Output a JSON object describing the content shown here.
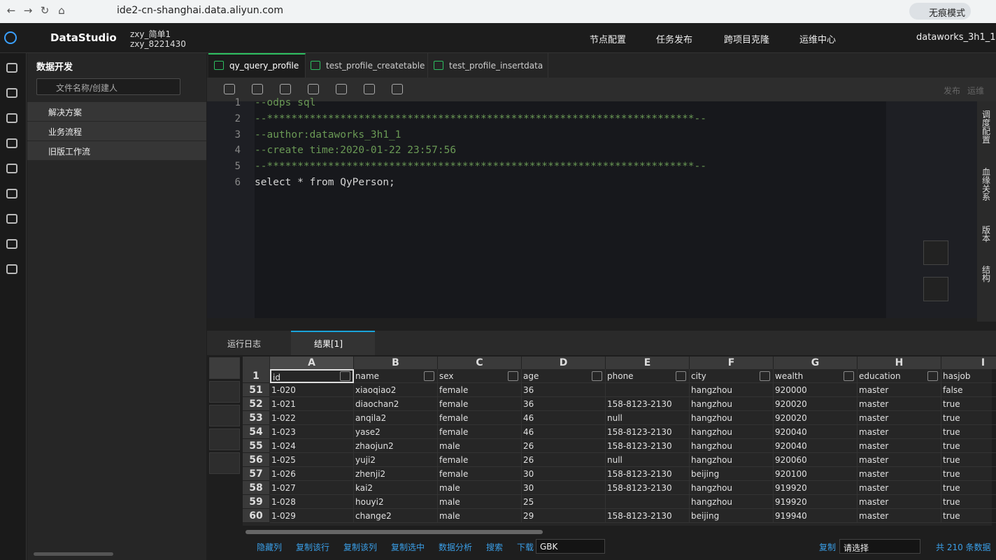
{
  "browser": {
    "url": "ide2-cn-shanghai.data.aliyun.com",
    "incognito": "无痕模式"
  },
  "header": {
    "brand": "DataStudio",
    "project_name": "zxy_简单1",
    "project_id": "zxy_8221430",
    "nav": [
      "节点配置",
      "任务发布",
      "跨项目克隆",
      "运维中心"
    ],
    "user": "dataworks_3h1_1"
  },
  "sidebar": {
    "title": "数据开发",
    "search_placeholder": "文件名称/创建人",
    "tree": [
      "解决方案",
      "业务流程",
      "旧版工作流"
    ]
  },
  "editor": {
    "tabs": [
      "qy_query_profile",
      "test_profile_createtable",
      "test_profile_insertdata"
    ],
    "actions": [
      "发布",
      "运维"
    ],
    "line_numbers": [
      1,
      2,
      3,
      4,
      5,
      6
    ],
    "lines": [
      "--odps sql",
      "--**********************************************************************--",
      "--author:dataworks_3h1_1",
      "--create time:2020-01-22 23:57:56",
      "--**********************************************************************--",
      "select * from QyPerson;"
    ]
  },
  "right_panel": [
    "调度配置",
    "血缘关系",
    "版本",
    "结构"
  ],
  "result": {
    "tabs": [
      "运行日志",
      "结果[1]"
    ],
    "column_letters": [
      "A",
      "B",
      "C",
      "D",
      "E",
      "F",
      "G",
      "H",
      "I"
    ],
    "header_row": 1,
    "headers": [
      "id",
      "name",
      "sex",
      "age",
      "phone",
      "city",
      "wealth",
      "education",
      "hasjob"
    ],
    "rows": [
      {
        "n": 51,
        "cells": [
          "1-020",
          "xiaoqiao2",
          "female",
          "36",
          null,
          "hangzhou",
          "920000",
          "master",
          "false"
        ]
      },
      {
        "n": 52,
        "cells": [
          "1-021",
          "diaochan2",
          "female",
          "36",
          "158-8123-2130",
          "hangzhou",
          "920020",
          "master",
          "true"
        ]
      },
      {
        "n": 53,
        "cells": [
          "1-022",
          "anqila2",
          "female",
          "46",
          "null",
          "hangzhou",
          "920020",
          "master",
          "true"
        ]
      },
      {
        "n": 54,
        "cells": [
          "1-023",
          "yase2",
          "female",
          "46",
          "158-8123-2130",
          "hangzhou",
          "920040",
          "master",
          "true"
        ]
      },
      {
        "n": 55,
        "cells": [
          "1-024",
          "zhaojun2",
          "male",
          "26",
          "158-8123-2130",
          "hangzhou",
          "920040",
          "master",
          "true"
        ]
      },
      {
        "n": 56,
        "cells": [
          "1-025",
          "yuji2",
          "female",
          "26",
          "null",
          "hangzhou",
          "920060",
          "master",
          "true"
        ]
      },
      {
        "n": 57,
        "cells": [
          "1-026",
          "zhenji2",
          "female",
          "30",
          "158-8123-2130",
          "beijing",
          "920100",
          "master",
          "true"
        ]
      },
      {
        "n": 58,
        "cells": [
          "1-027",
          "kai2",
          "male",
          "30",
          "158-8123-2130",
          "hangzhou",
          "919920",
          "master",
          "true"
        ]
      },
      {
        "n": 59,
        "cells": [
          "1-028",
          "houyi2",
          "male",
          "25",
          null,
          "hangzhou",
          "919920",
          "master",
          "true"
        ]
      },
      {
        "n": 60,
        "cells": [
          "1-029",
          "change2",
          "male",
          "29",
          "158-8123-2130",
          "beijing",
          "919940",
          "master",
          "true"
        ]
      }
    ]
  },
  "footer": {
    "actions": [
      "隐藏列",
      "复制该行",
      "复制该列",
      "复制选中",
      "数据分析",
      "搜索",
      "下载"
    ],
    "encoding": "GBK",
    "copy": "复制",
    "select": "请选择",
    "total": "共 210 条数据"
  }
}
